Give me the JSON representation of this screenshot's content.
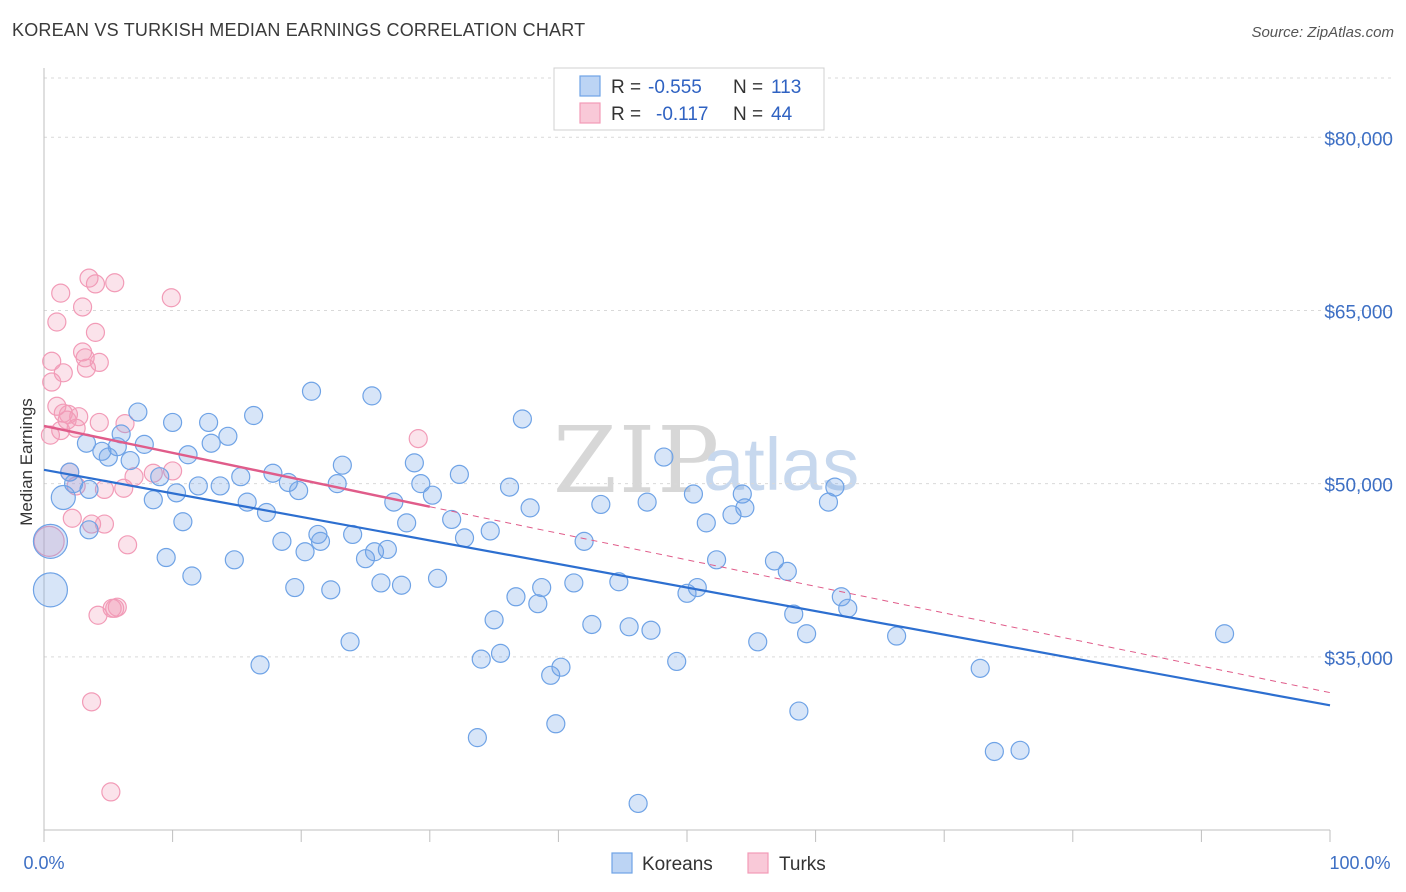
{
  "title": "KOREAN VS TURKISH MEDIAN EARNINGS CORRELATION CHART",
  "source": "Source: ZipAtlas.com",
  "watermark": {
    "zip": "ZIP",
    "atlas": "atlas"
  },
  "colors": {
    "korean": "#6fa3e6",
    "turkish": "#f29bb7",
    "korean_line": "#2d6fd0",
    "turkish_line": "#e05c8a",
    "axis_text": "#3d6fc4"
  },
  "legend": {
    "rows": [
      {
        "r_label": "R =",
        "r_value": "-0.555",
        "n_label": "N =",
        "n_value": "113"
      },
      {
        "r_label": "R =",
        "r_value": "-0.117",
        "n_label": "N =",
        "n_value": "44"
      }
    ]
  },
  "bottom_legend": {
    "koreans": "Koreans",
    "turks": "Turks"
  },
  "chart_data": {
    "type": "scatter",
    "title": "KOREAN VS TURKISH MEDIAN EARNINGS CORRELATION CHART",
    "xlabel": "",
    "ylabel": "Median Earnings",
    "xlim": [
      0,
      100
    ],
    "ylim": [
      20000,
      86000
    ],
    "x_tick_labels": [
      "0.0%",
      "100.0%"
    ],
    "y_ticks": [
      {
        "value": 80000,
        "label": "$80,000"
      },
      {
        "value": 65000,
        "label": "$65,000"
      },
      {
        "value": 50000,
        "label": "$50,000"
      },
      {
        "value": 35000,
        "label": "$35,000"
      }
    ],
    "series": [
      {
        "name": "Koreans",
        "trend": {
          "x0": 0,
          "y0": 51200,
          "x1": 100,
          "y1": 30800
        },
        "points": [
          [
            0.5,
            45000
          ],
          [
            0.5,
            40800
          ],
          [
            1.5,
            48800
          ],
          [
            2,
            51000
          ],
          [
            2.3,
            50000
          ],
          [
            3.5,
            49500
          ],
          [
            3.5,
            46000
          ],
          [
            3.3,
            53500
          ],
          [
            4.5,
            52800
          ],
          [
            5,
            52300
          ],
          [
            5.7,
            53200
          ],
          [
            6,
            54300
          ],
          [
            6.7,
            52000
          ],
          [
            7.3,
            56200
          ],
          [
            7.8,
            53400
          ],
          [
            8.5,
            48600
          ],
          [
            9,
            50600
          ],
          [
            9.5,
            43600
          ],
          [
            10,
            55300
          ],
          [
            10.3,
            49200
          ],
          [
            10.8,
            46700
          ],
          [
            11.2,
            52500
          ],
          [
            11.5,
            42000
          ],
          [
            12,
            49800
          ],
          [
            12.8,
            55300
          ],
          [
            13,
            53500
          ],
          [
            13.7,
            49800
          ],
          [
            14.3,
            54100
          ],
          [
            14.8,
            43400
          ],
          [
            15.3,
            50600
          ],
          [
            15.8,
            48400
          ],
          [
            16.3,
            55900
          ],
          [
            16.8,
            34300
          ],
          [
            17.3,
            47500
          ],
          [
            17.8,
            50900
          ],
          [
            18.5,
            45000
          ],
          [
            19,
            50100
          ],
          [
            19.5,
            41000
          ],
          [
            19.8,
            49400
          ],
          [
            20.3,
            44100
          ],
          [
            20.8,
            58000
          ],
          [
            21.3,
            45600
          ],
          [
            21.5,
            45000
          ],
          [
            22.3,
            40800
          ],
          [
            22.8,
            50000
          ],
          [
            23.2,
            51600
          ],
          [
            23.8,
            36300
          ],
          [
            24,
            45600
          ],
          [
            25,
            43500
          ],
          [
            25.5,
            57600
          ],
          [
            25.7,
            44100
          ],
          [
            26.2,
            41400
          ],
          [
            26.7,
            44300
          ],
          [
            27.2,
            48400
          ],
          [
            27.8,
            41200
          ],
          [
            28.2,
            46600
          ],
          [
            28.8,
            51800
          ],
          [
            29.3,
            50000
          ],
          [
            30.2,
            49000
          ],
          [
            30.6,
            41800
          ],
          [
            31.7,
            46900
          ],
          [
            32.3,
            50800
          ],
          [
            32.7,
            45300
          ],
          [
            33.7,
            28000
          ],
          [
            34,
            34800
          ],
          [
            34.7,
            45900
          ],
          [
            35,
            38200
          ],
          [
            35.5,
            35300
          ],
          [
            36.2,
            49700
          ],
          [
            36.7,
            40200
          ],
          [
            37.2,
            55600
          ],
          [
            37.8,
            47900
          ],
          [
            38.4,
            39600
          ],
          [
            38.7,
            41000
          ],
          [
            39.4,
            33400
          ],
          [
            39.8,
            29200
          ],
          [
            40.2,
            34100
          ],
          [
            41.2,
            41400
          ],
          [
            42,
            45000
          ],
          [
            42.6,
            37800
          ],
          [
            43.3,
            48200
          ],
          [
            44.7,
            41500
          ],
          [
            45.5,
            37600
          ],
          [
            46.2,
            22300
          ],
          [
            46.9,
            48400
          ],
          [
            47.2,
            37300
          ],
          [
            48.2,
            52300
          ],
          [
            49.2,
            34600
          ],
          [
            50,
            40500
          ],
          [
            50.5,
            49100
          ],
          [
            50.8,
            41000
          ],
          [
            51.5,
            46600
          ],
          [
            52.3,
            43400
          ],
          [
            53.5,
            47300
          ],
          [
            54.3,
            49100
          ],
          [
            54.5,
            47900
          ],
          [
            55.5,
            36300
          ],
          [
            56.8,
            43300
          ],
          [
            57.8,
            42400
          ],
          [
            58.3,
            38700
          ],
          [
            58.7,
            30300
          ],
          [
            59.3,
            37000
          ],
          [
            61,
            48400
          ],
          [
            61.5,
            49700
          ],
          [
            62,
            40200
          ],
          [
            62.5,
            39200
          ],
          [
            66.3,
            36800
          ],
          [
            72.8,
            34000
          ],
          [
            73.9,
            26800
          ],
          [
            75.9,
            26900
          ],
          [
            91.8,
            37000
          ]
        ]
      },
      {
        "name": "Turks",
        "trend": {
          "x0": 0,
          "y0": 55000,
          "x1": 30,
          "y1": 48000,
          "dash_x1": 100,
          "dash_y1": 31900
        },
        "points": [
          [
            0.4,
            45000
          ],
          [
            0.5,
            54200
          ],
          [
            0.6,
            58800
          ],
          [
            0.6,
            60600
          ],
          [
            1,
            56700
          ],
          [
            1,
            64000
          ],
          [
            1.3,
            66500
          ],
          [
            1.3,
            54600
          ],
          [
            1.5,
            56100
          ],
          [
            1.5,
            59600
          ],
          [
            1.8,
            55500
          ],
          [
            1.9,
            56000
          ],
          [
            2,
            51000
          ],
          [
            2.2,
            47000
          ],
          [
            2.5,
            49800
          ],
          [
            2.5,
            54800
          ],
          [
            2.7,
            55800
          ],
          [
            3,
            65300
          ],
          [
            3,
            61400
          ],
          [
            3.2,
            60900
          ],
          [
            3.3,
            60000
          ],
          [
            3.5,
            67800
          ],
          [
            3.7,
            31100
          ],
          [
            3.7,
            46500
          ],
          [
            4,
            67300
          ],
          [
            4,
            63100
          ],
          [
            4.2,
            38600
          ],
          [
            4.3,
            60500
          ],
          [
            4.3,
            55300
          ],
          [
            4.7,
            49500
          ],
          [
            4.7,
            46500
          ],
          [
            5.2,
            23300
          ],
          [
            5.3,
            39200
          ],
          [
            5.5,
            67400
          ],
          [
            5.5,
            39200
          ],
          [
            5.7,
            39300
          ],
          [
            6.2,
            49600
          ],
          [
            6.3,
            55200
          ],
          [
            6.5,
            44700
          ],
          [
            7,
            50600
          ],
          [
            8.5,
            50900
          ],
          [
            9.9,
            66100
          ],
          [
            10,
            51100
          ],
          [
            29.1,
            53900
          ]
        ]
      }
    ]
  }
}
